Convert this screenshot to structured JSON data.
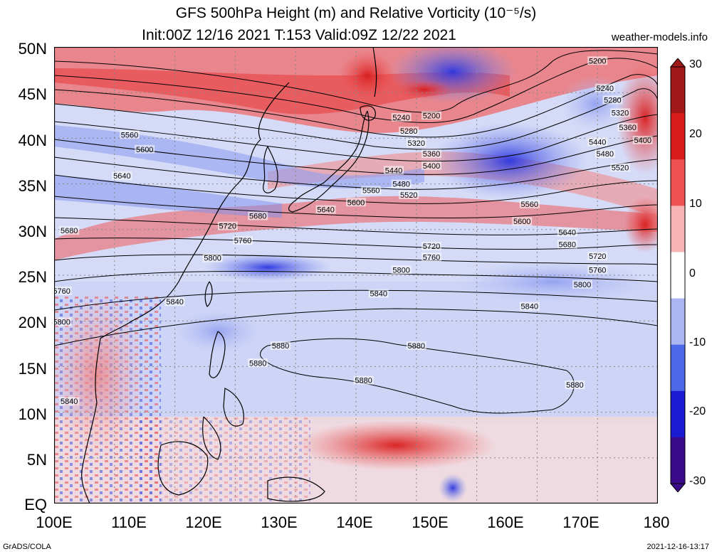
{
  "title": {
    "line1": "GFS 500hPa Height (m) and Relative Vorticity (10⁻⁵/s)",
    "line2": "Init:00Z 12/16 2021 T:153 Valid:09Z 12/22 2021",
    "site": "weather-models.info"
  },
  "axes": {
    "lat_labels": [
      "50N",
      "45N",
      "40N",
      "35N",
      "30N",
      "25N",
      "20N",
      "15N",
      "10N",
      "5N",
      "EQ"
    ],
    "lon_labels": [
      "100E",
      "110E",
      "120E",
      "130E",
      "140E",
      "150E",
      "160E",
      "170E",
      "180"
    ]
  },
  "colorbar": {
    "labels": [
      "30",
      "20",
      "10",
      "0",
      "-10",
      "-20",
      "-30"
    ],
    "min": -30,
    "max": 30,
    "colors": [
      "#3a0a8c",
      "#1a1ad0",
      "#4d68e8",
      "#a9b6f2",
      "#ffffff",
      "#f6b4b4",
      "#ef5050",
      "#d81c1c",
      "#a01818"
    ]
  },
  "contours": {
    "labels": [
      {
        "text": "5200",
        "lon": 150,
        "lat": 42.5
      },
      {
        "text": "5200",
        "lon": 172,
        "lat": 48.5
      },
      {
        "text": "5240",
        "lon": 146,
        "lat": 42.3
      },
      {
        "text": "5240",
        "lon": 173,
        "lat": 45.5
      },
      {
        "text": "5280",
        "lon": 147,
        "lat": 40.8
      },
      {
        "text": "5280",
        "lon": 174,
        "lat": 44.2
      },
      {
        "text": "5320",
        "lon": 148,
        "lat": 39.5
      },
      {
        "text": "5320",
        "lon": 175,
        "lat": 42.8
      },
      {
        "text": "5360",
        "lon": 150,
        "lat": 38.3
      },
      {
        "text": "5360",
        "lon": 176,
        "lat": 41.2
      },
      {
        "text": "5400",
        "lon": 150,
        "lat": 37
      },
      {
        "text": "5400",
        "lon": 178,
        "lat": 39.8
      },
      {
        "text": "5440",
        "lon": 145,
        "lat": 36.5
      },
      {
        "text": "5440",
        "lon": 172,
        "lat": 39.6
      },
      {
        "text": "5480",
        "lon": 146,
        "lat": 35
      },
      {
        "text": "5480",
        "lon": 173,
        "lat": 38.3
      },
      {
        "text": "5520",
        "lon": 147,
        "lat": 33.8
      },
      {
        "text": "5520",
        "lon": 175,
        "lat": 36.8
      },
      {
        "text": "5560",
        "lon": 142,
        "lat": 34.3
      },
      {
        "text": "5560",
        "lon": 163,
        "lat": 32.8
      },
      {
        "text": "5560",
        "lon": 110,
        "lat": 40.4
      },
      {
        "text": "5600",
        "lon": 112,
        "lat": 38.8
      },
      {
        "text": "5600",
        "lon": 140,
        "lat": 33
      },
      {
        "text": "5600",
        "lon": 162,
        "lat": 30.9
      },
      {
        "text": "5640",
        "lon": 109,
        "lat": 35.9
      },
      {
        "text": "5640",
        "lon": 136,
        "lat": 32.2
      },
      {
        "text": "5640",
        "lon": 168,
        "lat": 29.7
      },
      {
        "text": "5680",
        "lon": 102,
        "lat": 29.9
      },
      {
        "text": "5680",
        "lon": 127,
        "lat": 31.5
      },
      {
        "text": "5680",
        "lon": 168,
        "lat": 28.4
      },
      {
        "text": "5720",
        "lon": 123,
        "lat": 30.4
      },
      {
        "text": "5720",
        "lon": 150,
        "lat": 28.2
      },
      {
        "text": "5720",
        "lon": 172,
        "lat": 27.1
      },
      {
        "text": "5760",
        "lon": 125,
        "lat": 28.8
      },
      {
        "text": "5760",
        "lon": 150,
        "lat": 27
      },
      {
        "text": "5760",
        "lon": 172,
        "lat": 25.6
      },
      {
        "text": "5760",
        "lon": 101,
        "lat": 23.3
      },
      {
        "text": "5800",
        "lon": 121,
        "lat": 26.9
      },
      {
        "text": "5800",
        "lon": 146,
        "lat": 25.6
      },
      {
        "text": "5800",
        "lon": 170,
        "lat": 24
      },
      {
        "text": "5800",
        "lon": 101,
        "lat": 19.9
      },
      {
        "text": "5840",
        "lon": 116,
        "lat": 22.1
      },
      {
        "text": "5840",
        "lon": 143,
        "lat": 23
      },
      {
        "text": "5840",
        "lon": 163,
        "lat": 21.6
      },
      {
        "text": "5840",
        "lon": 102,
        "lat": 11.2
      },
      {
        "text": "5880",
        "lon": 130,
        "lat": 17.3
      },
      {
        "text": "5880",
        "lon": 127,
        "lat": 15.4
      },
      {
        "text": "5880",
        "lon": 148,
        "lat": 17.3
      },
      {
        "text": "5880",
        "lon": 141,
        "lat": 13.5
      },
      {
        "text": "5880",
        "lon": 169,
        "lat": 13
      }
    ]
  },
  "footer": {
    "left": "GrADS/COLA",
    "right": "2021-12-16-13:17"
  }
}
